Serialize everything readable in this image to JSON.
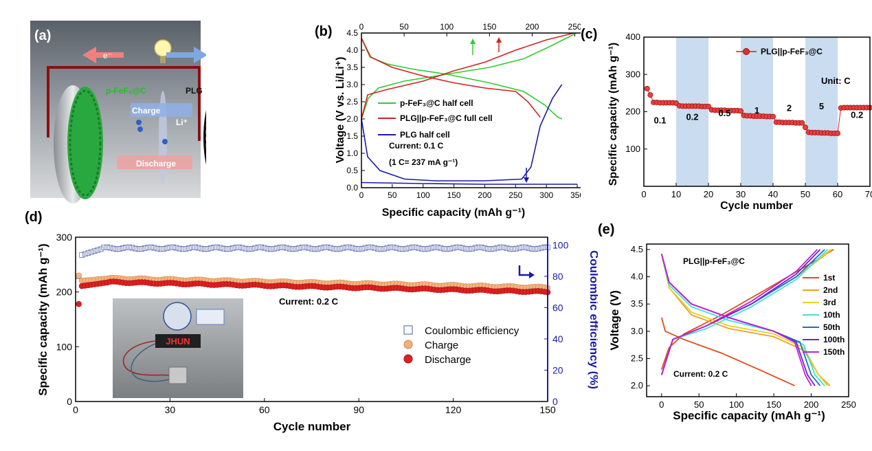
{
  "panels": {
    "a": "(a)",
    "b": "(b)",
    "c": "(c)",
    "d": "(d)",
    "e": "(e)"
  },
  "colors": {
    "green": "#2ecc2e",
    "red": "#d42020",
    "blue": "#1a1aa8",
    "axisBlue": "#1a1aa8",
    "lightBlue": "#c9dcf0",
    "orange": "#f0a060"
  },
  "schematic": {
    "electron_left": "e⁻",
    "electron_right": "e⁻",
    "cathode": "p-FeF₃@C",
    "anode": "PLG",
    "charge": "Charge",
    "discharge": "Discharge",
    "ion": "Li⁺"
  },
  "chart_data": [
    {
      "id": "b",
      "type": "line",
      "xlabel": "Specific capacity (mAh g⁻¹)",
      "ylabel": "Voltage (V vs. Li/Li⁺)",
      "xlim": [
        0,
        360
      ],
      "ylim": [
        0,
        4.5
      ],
      "x_ticks": [
        "0",
        "50",
        "100",
        "150",
        "200",
        "250",
        "300",
        "350"
      ],
      "y_ticks": [
        "0.0",
        "0.5",
        "1.0",
        "1.5",
        "2.0",
        "2.5",
        "3.0",
        "3.5",
        "4.0",
        "4.5"
      ],
      "top_axis": {
        "lim": [
          0,
          260
        ],
        "ticks": [
          "0",
          "50",
          "100",
          "150",
          "200",
          "250"
        ]
      },
      "annotations": [
        "Current: 0.1 C",
        "(1 C= 237 mA g⁻¹)"
      ],
      "legend": [
        "p-FeF₃@C half cell",
        "PLG||p-FeF₃@C full cell",
        "PLG half cell"
      ],
      "series": [
        {
          "name": "p-FeF₃@C half cell",
          "color": "#2ecc2e",
          "axis": "top",
          "segments": [
            [
              [
                0,
                2.0
              ],
              [
                8,
                2.6
              ],
              [
                20,
                2.9
              ],
              [
                50,
                3.1
              ],
              [
                100,
                3.3
              ],
              [
                150,
                3.5
              ],
              [
                190,
                3.75
              ],
              [
                220,
                4.1
              ],
              [
                240,
                4.35
              ],
              [
                252,
                4.5
              ]
            ],
            [
              [
                0,
                4.35
              ],
              [
                10,
                3.8
              ],
              [
                30,
                3.6
              ],
              [
                60,
                3.45
              ],
              [
                100,
                3.3
              ],
              [
                150,
                3.05
              ],
              [
                190,
                2.8
              ],
              [
                215,
                2.4
              ],
              [
                230,
                2.05
              ],
              [
                235,
                2.0
              ]
            ]
          ]
        },
        {
          "name": "PLG||p-FeF₃@C full cell",
          "color": "#d42020",
          "axis": "bottom",
          "segments": [
            [
              [
                0,
                2.0
              ],
              [
                10,
                2.7
              ],
              [
                40,
                2.85
              ],
              [
                100,
                3.1
              ],
              [
                150,
                3.4
              ],
              [
                200,
                3.65
              ],
              [
                250,
                4.0
              ],
              [
                300,
                4.3
              ],
              [
                345,
                4.5
              ]
            ],
            [
              [
                0,
                4.35
              ],
              [
                15,
                3.8
              ],
              [
                50,
                3.5
              ],
              [
                100,
                3.25
              ],
              [
                150,
                3.05
              ],
              [
                200,
                2.9
              ],
              [
                250,
                2.8
              ],
              [
                270,
                2.5
              ],
              [
                290,
                2.05
              ]
            ]
          ]
        },
        {
          "name": "PLG half cell",
          "color": "#1a1aa8",
          "axis": "bottom",
          "segments": [
            [
              [
                0,
                2.0
              ],
              [
                10,
                0.9
              ],
              [
                30,
                0.5
              ],
              [
                70,
                0.25
              ],
              [
                120,
                0.2
              ],
              [
                200,
                0.2
              ],
              [
                260,
                0.25
              ],
              [
                275,
                0.6
              ],
              [
                290,
                1.8
              ],
              [
                310,
                2.6
              ],
              [
                325,
                3.0
              ]
            ],
            [
              [
                0,
                0.15
              ],
              [
                100,
                0.12
              ],
              [
                200,
                0.1
              ],
              [
                300,
                0.1
              ],
              [
                350,
                0.1
              ]
            ]
          ]
        }
      ]
    },
    {
      "id": "c",
      "type": "scatter",
      "xlabel": "Cycle number",
      "ylabel": "Specific capacity (mAh g⁻¹)",
      "xlim": [
        0,
        70
      ],
      "ylim": [
        0,
        400
      ],
      "x_ticks": [
        "0",
        "10",
        "20",
        "30",
        "40",
        "50",
        "60",
        "70"
      ],
      "y_ticks": [
        "100",
        "200",
        "300",
        "400"
      ],
      "legend": [
        "PLG||p-FeF₃@C"
      ],
      "unit_label": "Unit: C",
      "rate_labels": [
        "0.1",
        "0.2",
        "0.5",
        "1",
        "2",
        "5",
        "0.2"
      ],
      "shaded_bands": [
        [
          10,
          20
        ],
        [
          30,
          40
        ],
        [
          50,
          60
        ]
      ],
      "series": [
        {
          "name": "PLG||p-FeF₃@C",
          "values": [
            262,
            245,
            225,
            225,
            224,
            224,
            224,
            224,
            224,
            223,
            216,
            215,
            215,
            215,
            215,
            215,
            215,
            214,
            214,
            214,
            205,
            204,
            204,
            204,
            204,
            203,
            203,
            203,
            203,
            202,
            190,
            189,
            189,
            188,
            188,
            188,
            188,
            187,
            187,
            187,
            172,
            172,
            171,
            171,
            171,
            171,
            170,
            170,
            170,
            158,
            145,
            144,
            144,
            144,
            143,
            143,
            143,
            142,
            142,
            142,
            210,
            211,
            211,
            211,
            211,
            211,
            211,
            211,
            211,
            211
          ]
        }
      ]
    },
    {
      "id": "d",
      "type": "scatter",
      "xlabel": "Cycle number",
      "ylabel": "Specific capacity (mAh g⁻¹)",
      "y2label": "Coulombic efficiency (%)",
      "xlim": [
        0,
        150
      ],
      "ylim": [
        0,
        300
      ],
      "y2lim": [
        0,
        105
      ],
      "x_ticks": [
        "0",
        "30",
        "60",
        "90",
        "120",
        "150"
      ],
      "y_ticks": [
        "0",
        "100",
        "200",
        "300"
      ],
      "y2_ticks": [
        "0",
        "20",
        "40",
        "60",
        "80",
        "100"
      ],
      "annotation": "Current: 0.2 C",
      "legend": [
        "Coulombic efficiency",
        "Charge",
        "Discharge"
      ],
      "device_text": "JHUN",
      "series": [
        {
          "name": "Coulombic efficiency",
          "axis": "right",
          "first": 80,
          "start": 93,
          "plateau": 98
        },
        {
          "name": "Charge",
          "first": 230,
          "start": 220,
          "plateau": 225,
          "end": 208
        },
        {
          "name": "Discharge",
          "first": 178,
          "start": 210,
          "plateau": 218,
          "end": 200
        }
      ]
    },
    {
      "id": "e",
      "type": "line",
      "xlabel": "Specific capacity (mAh g⁻¹)",
      "ylabel": "Voltage (V)",
      "xlim": [
        -20,
        250
      ],
      "ylim": [
        1.8,
        4.6
      ],
      "x_ticks": [
        "0",
        "50",
        "100",
        "150",
        "200",
        "250"
      ],
      "y_ticks": [
        "2.0",
        "2.5",
        "3.0",
        "3.5",
        "4.0",
        "4.5"
      ],
      "title": "PLG||p-FeF₃@C",
      "annotation": "Current: 0.2 C",
      "legend": [
        "1st",
        "2nd",
        "3rd",
        "10th",
        "50th",
        "100th",
        "150th"
      ],
      "series": [
        {
          "name": "1st",
          "color": "#e04a1a",
          "charge": [
            [
              0,
              2.3
            ],
            [
              10,
              2.7
            ],
            [
              30,
              2.95
            ],
            [
              80,
              3.3
            ],
            [
              150,
              3.85
            ],
            [
              200,
              4.25
            ],
            [
              230,
              4.5
            ]
          ],
          "discharge": [
            [
              0,
              3.25
            ],
            [
              5,
              3.0
            ],
            [
              30,
              2.85
            ],
            [
              80,
              2.6
            ],
            [
              130,
              2.3
            ],
            [
              178,
              2.0
            ]
          ]
        },
        {
          "name": "2nd",
          "color": "#f0a020",
          "charge": [
            [
              0,
              2.2
            ],
            [
              15,
              2.85
            ],
            [
              60,
              3.1
            ],
            [
              120,
              3.5
            ],
            [
              180,
              4.0
            ],
            [
              228,
              4.5
            ]
          ],
          "discharge": [
            [
              0,
              4.42
            ],
            [
              10,
              3.8
            ],
            [
              40,
              3.3
            ],
            [
              90,
              3.05
            ],
            [
              150,
              2.9
            ],
            [
              190,
              2.65
            ],
            [
              210,
              2.2
            ],
            [
              225,
              2.0
            ]
          ]
        },
        {
          "name": "3rd",
          "color": "#e8d020",
          "charge": [
            [
              0,
              2.2
            ],
            [
              15,
              2.85
            ],
            [
              60,
              3.1
            ],
            [
              120,
              3.5
            ],
            [
              180,
              4.0
            ],
            [
              226,
              4.5
            ]
          ],
          "discharge": [
            [
              0,
              4.42
            ],
            [
              10,
              3.8
            ],
            [
              40,
              3.35
            ],
            [
              90,
              3.1
            ],
            [
              150,
              2.95
            ],
            [
              190,
              2.7
            ],
            [
              210,
              2.2
            ],
            [
              222,
              2.0
            ]
          ]
        },
        {
          "name": "10th",
          "color": "#40e0e0",
          "charge": [
            [
              0,
              2.2
            ],
            [
              15,
              2.85
            ],
            [
              60,
              3.05
            ],
            [
              120,
              3.45
            ],
            [
              180,
              3.95
            ],
            [
              222,
              4.5
            ]
          ],
          "discharge": [
            [
              0,
              4.42
            ],
            [
              10,
              3.85
            ],
            [
              40,
              3.45
            ],
            [
              90,
              3.2
            ],
            [
              150,
              3.0
            ],
            [
              190,
              2.75
            ],
            [
              205,
              2.2
            ],
            [
              218,
              2.0
            ]
          ]
        },
        {
          "name": "50th",
          "color": "#1a70c0",
          "charge": [
            [
              0,
              2.2
            ],
            [
              15,
              2.85
            ],
            [
              60,
              3.1
            ],
            [
              120,
              3.5
            ],
            [
              180,
              4.0
            ],
            [
              218,
              4.5
            ]
          ],
          "discharge": [
            [
              0,
              4.42
            ],
            [
              10,
              3.9
            ],
            [
              40,
              3.5
            ],
            [
              90,
              3.25
            ],
            [
              150,
              3.0
            ],
            [
              185,
              2.8
            ],
            [
              200,
              2.2
            ],
            [
              212,
              2.0
            ]
          ]
        },
        {
          "name": "100th",
          "color": "#7020d0",
          "charge": [
            [
              0,
              2.2
            ],
            [
              15,
              2.85
            ],
            [
              60,
              3.1
            ],
            [
              120,
              3.5
            ],
            [
              180,
              4.05
            ],
            [
              212,
              4.5
            ]
          ],
          "discharge": [
            [
              0,
              4.42
            ],
            [
              10,
              3.9
            ],
            [
              40,
              3.5
            ],
            [
              90,
              3.25
            ],
            [
              150,
              3.0
            ],
            [
              180,
              2.8
            ],
            [
              195,
              2.2
            ],
            [
              205,
              2.0
            ]
          ]
        },
        {
          "name": "150th",
          "color": "#c020d0",
          "charge": [
            [
              0,
              2.2
            ],
            [
              15,
              2.85
            ],
            [
              60,
              3.1
            ],
            [
              120,
              3.55
            ],
            [
              180,
              4.1
            ],
            [
              208,
              4.5
            ]
          ],
          "discharge": [
            [
              0,
              4.42
            ],
            [
              10,
              3.9
            ],
            [
              40,
              3.5
            ],
            [
              90,
              3.25
            ],
            [
              150,
              3.0
            ],
            [
              178,
              2.8
            ],
            [
              192,
              2.2
            ],
            [
              200,
              2.0
            ]
          ]
        }
      ]
    }
  ]
}
